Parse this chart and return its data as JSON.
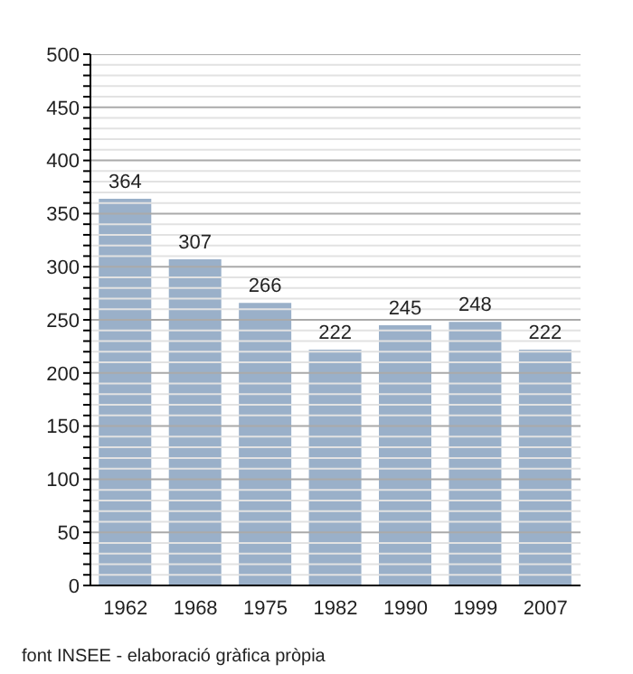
{
  "chart_data": {
    "type": "bar",
    "categories": [
      "1962",
      "1968",
      "1975",
      "1982",
      "1990",
      "1999",
      "2007"
    ],
    "values": [
      364,
      307,
      266,
      222,
      245,
      248,
      222
    ],
    "color": "#9ab0c9",
    "data_labels": true,
    "grid": "y",
    "ylim": [
      0,
      500
    ],
    "yticks": [
      0,
      {
        "value": 10,
        "label": null
      },
      {
        "value": 20,
        "label": null
      },
      {
        "value": 30,
        "label": null
      },
      {
        "value": 40,
        "label": null
      },
      50,
      {
        "value": 60,
        "label": null
      },
      {
        "value": 70,
        "label": null
      },
      {
        "value": 80,
        "label": null
      },
      {
        "value": 90,
        "label": null
      },
      100,
      {
        "value": 110,
        "label": null
      },
      {
        "value": 120,
        "label": null
      },
      {
        "value": 130,
        "label": null
      },
      {
        "value": 140,
        "label": null
      },
      150,
      {
        "value": 160,
        "label": null
      },
      {
        "value": 170,
        "label": null
      },
      {
        "value": 180,
        "label": null
      },
      {
        "value": 190,
        "label": null
      },
      200,
      {
        "value": 210,
        "label": null
      },
      {
        "value": 220,
        "label": null
      },
      {
        "value": 230,
        "label": null
      },
      {
        "value": 240,
        "label": null
      },
      250,
      {
        "value": 260,
        "label": null
      },
      {
        "value": 270,
        "label": null
      },
      {
        "value": 280,
        "label": null
      },
      {
        "value": 290,
        "label": null
      },
      300,
      {
        "value": 310,
        "label": null
      },
      {
        "value": 320,
        "label": null
      },
      {
        "value": 330,
        "label": null
      },
      {
        "value": 340,
        "label": null
      },
      350,
      {
        "value": 360,
        "label": null
      },
      {
        "value": 370,
        "label": null
      },
      {
        "value": 380,
        "label": null
      },
      {
        "value": 390,
        "label": null
      },
      400,
      {
        "value": 410,
        "label": null
      },
      {
        "value": 420,
        "label": null
      },
      {
        "value": 430,
        "label": null
      },
      {
        "value": 440,
        "label": null
      },
      450,
      {
        "value": 460,
        "label": null
      },
      {
        "value": 470,
        "label": null
      },
      {
        "value": 480,
        "label": null
      },
      {
        "value": 490,
        "label": null
      },
      500
    ],
    "annotations": [
      "font INSEE - elaboració gràfica pròpia"
    ]
  }
}
